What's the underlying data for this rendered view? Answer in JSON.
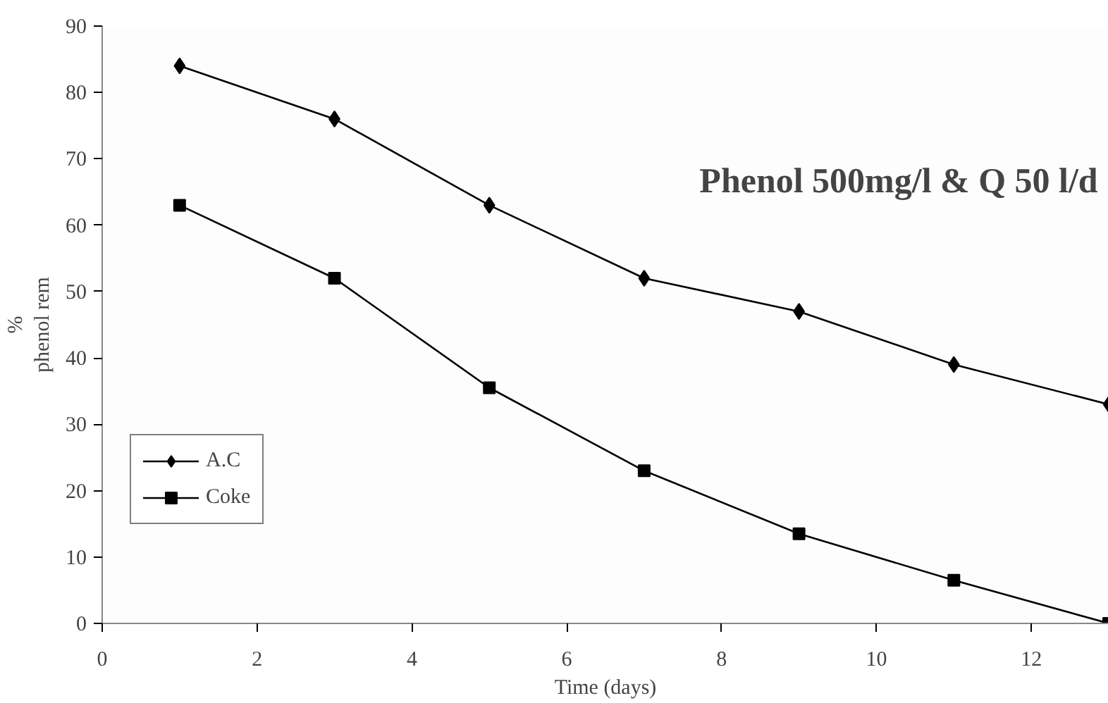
{
  "chart_data": {
    "type": "line",
    "xlabel": "Time (days)",
    "ylabel": "%\nphenol rem",
    "annotations": [
      "Phenol 500mg/l & Q 50 l/d"
    ],
    "x": [
      1,
      3,
      5,
      7,
      9,
      11,
      13
    ],
    "series": [
      {
        "name": "A.C",
        "color": "#000000",
        "marker": "diamond",
        "values": [
          84,
          76,
          63,
          52,
          47,
          39,
          33
        ]
      },
      {
        "name": "Coke",
        "color": "#000000",
        "marker": "square",
        "values": [
          63,
          52,
          35.5,
          23,
          13.5,
          6.5,
          0
        ]
      }
    ],
    "xlim": [
      0,
      13
    ],
    "ylim": [
      0,
      90
    ],
    "xticks": [
      0,
      2,
      4,
      6,
      8,
      10,
      12
    ],
    "yticks": [
      0,
      10,
      20,
      30,
      40,
      50,
      60,
      70,
      80,
      90
    ],
    "grid": false,
    "legend": "left",
    "line_style": "solid"
  }
}
